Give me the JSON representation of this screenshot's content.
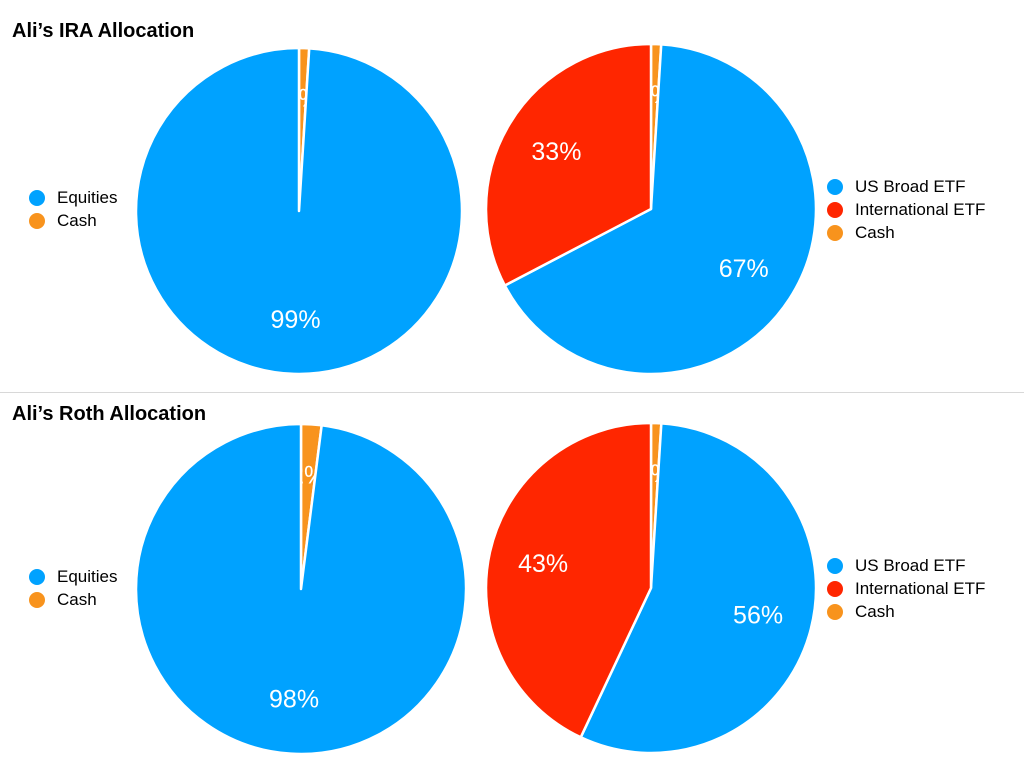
{
  "colors": {
    "equities": "#00a2ff",
    "us_broad": "#00a2ff",
    "international": "#ff2600",
    "cash": "#f8931d"
  },
  "sections": {
    "ira": {
      "title": "Ali’s IRA Allocation"
    },
    "roth": {
      "title": "Ali’s Roth Allocation"
    }
  },
  "chart_data": [
    {
      "type": "pie",
      "title": "Ali’s IRA Allocation",
      "slices": [
        {
          "label": "Cash",
          "value": 1,
          "display": "1%",
          "color": "#f8931d"
        },
        {
          "label": "Equities",
          "value": 99,
          "display": "99%",
          "color": "#00a2ff"
        }
      ],
      "legend": [
        "Equities",
        "Cash"
      ],
      "legend_position": "left"
    },
    {
      "type": "pie",
      "title": "Ali’s IRA Allocation",
      "slices": [
        {
          "label": "Cash",
          "value": 1,
          "display": "1%",
          "color": "#f8931d"
        },
        {
          "label": "US Broad ETF",
          "value": 67,
          "display": "67%",
          "color": "#00a2ff"
        },
        {
          "label": "International ETF",
          "value": 33,
          "display": "33%",
          "color": "#ff2600"
        }
      ],
      "legend": [
        "US Broad ETF",
        "International ETF",
        "Cash"
      ],
      "legend_position": "right"
    },
    {
      "type": "pie",
      "title": "Ali’s Roth Allocation",
      "slices": [
        {
          "label": "Cash",
          "value": 2,
          "display": "2%",
          "color": "#f8931d"
        },
        {
          "label": "Equities",
          "value": 98,
          "display": "98%",
          "color": "#00a2ff"
        }
      ],
      "legend": [
        "Equities",
        "Cash"
      ],
      "legend_position": "left"
    },
    {
      "type": "pie",
      "title": "Ali’s Roth Allocation",
      "slices": [
        {
          "label": "Cash",
          "value": 1,
          "display": "1%",
          "color": "#f8931d"
        },
        {
          "label": "US Broad ETF",
          "value": 56,
          "display": "56%",
          "color": "#00a2ff"
        },
        {
          "label": "International ETF",
          "value": 43,
          "display": "43%",
          "color": "#ff2600"
        }
      ],
      "legend": [
        "US Broad ETF",
        "International ETF",
        "Cash"
      ],
      "legend_position": "right"
    }
  ]
}
